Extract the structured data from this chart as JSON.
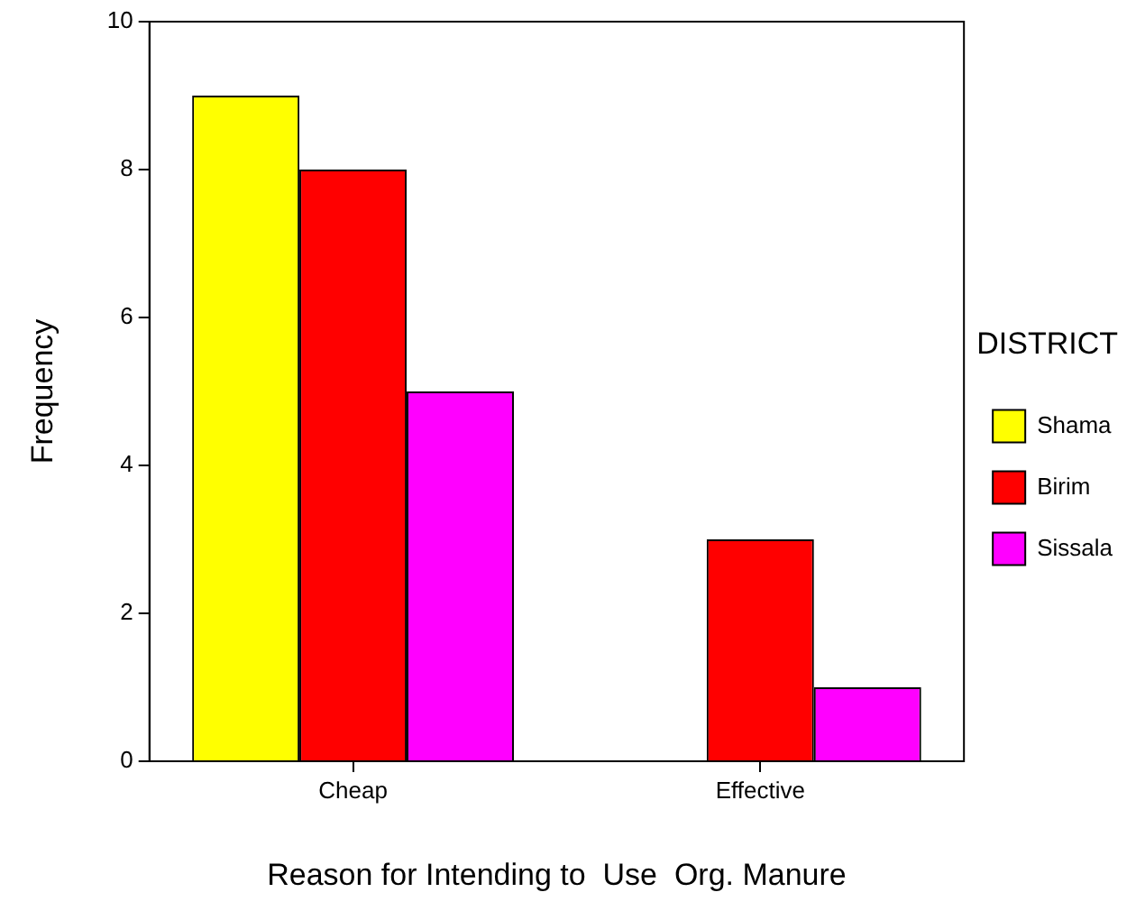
{
  "chart_data": {
    "type": "bar",
    "xlabel": "Reason for Intending to  Use  Org. Manure",
    "ylabel": "Frequency",
    "legend_title": "DISTRICT",
    "categories": [
      "Cheap",
      "Effective"
    ],
    "series": [
      {
        "name": "Shama",
        "color": "#ffff00",
        "values": [
          9,
          null
        ]
      },
      {
        "name": "Birim",
        "color": "#ff0000",
        "values": [
          8,
          3
        ]
      },
      {
        "name": "Sissala",
        "color": "#ff00ff",
        "values": [
          5,
          1
        ]
      }
    ],
    "ylim": [
      0,
      10
    ],
    "yticks": [
      0,
      2,
      4,
      6,
      8,
      10
    ],
    "grid": false,
    "legend": "right"
  }
}
